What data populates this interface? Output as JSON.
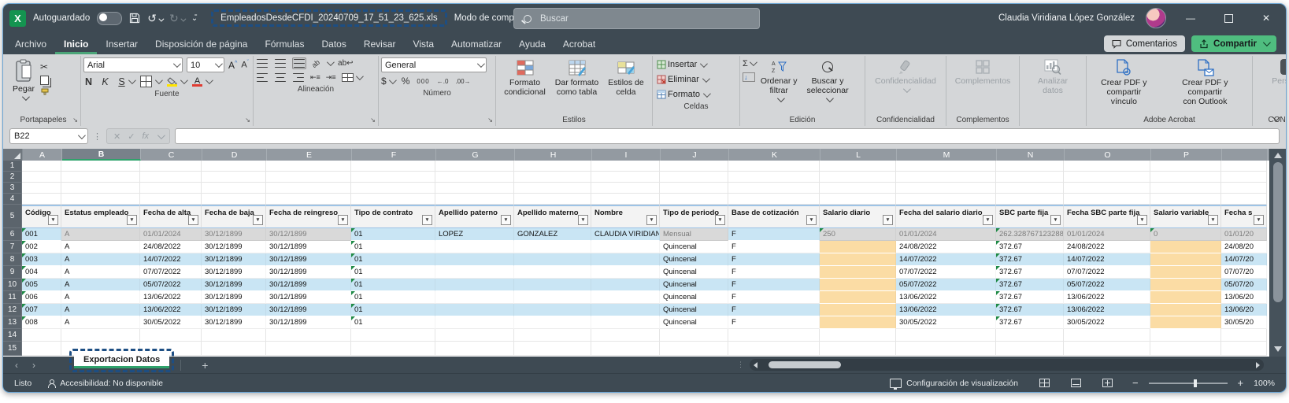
{
  "window": {
    "autosave_label": "Autoguardado",
    "filename": "EmpleadosDesdeCFDI_20240709_17_51_23_625.xls",
    "compatibility_mode": "Modo de compatibil...",
    "search_placeholder": "Buscar",
    "user_name": "Claudia Viridiana López González"
  },
  "ribbon": {
    "tabs": [
      {
        "label": "Archivo"
      },
      {
        "label": "Inicio"
      },
      {
        "label": "Insertar"
      },
      {
        "label": "Disposición de página"
      },
      {
        "label": "Fórmulas"
      },
      {
        "label": "Datos"
      },
      {
        "label": "Revisar"
      },
      {
        "label": "Vista"
      },
      {
        "label": "Automatizar"
      },
      {
        "label": "Ayuda"
      },
      {
        "label": "Acrobat"
      }
    ],
    "active_tab": "Inicio",
    "comments_label": "Comentarios",
    "share_label": "Compartir",
    "clipboard": {
      "paste": "Pegar",
      "group_label": "Portapapeles"
    },
    "font": {
      "name": "Arial",
      "size": "10",
      "bold": "N",
      "italic": "K",
      "underline": "S",
      "group_label": "Fuente"
    },
    "alignment": {
      "group_label": "Alineación"
    },
    "number": {
      "format": "General",
      "group_label": "Número"
    },
    "styles": {
      "conditional": "Formato\ncondicional",
      "format_table": "Dar formato\ncomo tabla",
      "cell_styles": "Estilos de\ncelda",
      "group_label": "Estilos"
    },
    "cells": {
      "insert": "Insertar",
      "delete": "Eliminar",
      "format": "Formato",
      "group_label": "Celdas"
    },
    "editing": {
      "sort_filter": "Ordenar y\nfiltrar",
      "find_select": "Buscar y\nseleccionar",
      "group_label": "Edición"
    },
    "sensitivity": {
      "button": "Confidencialidad",
      "group_label": "Confidencialidad"
    },
    "addins": {
      "button": "Complementos",
      "group_label": "Complementos"
    },
    "analyze": {
      "button": "Analizar\ndatos"
    },
    "acrobat": {
      "pdf_link": "Crear PDF y\ncompartir vínculo",
      "pdf_outlook": "Crear PDF y compartir\ncon Outlook",
      "group_label": "Adobe Acrobat"
    },
    "contpaqi": {
      "button": "Personia",
      "group_label": "CONTPAQi"
    }
  },
  "formula_bar": {
    "name_box": "B22",
    "fx_label": "fx"
  },
  "grid": {
    "column_letters": [
      "A",
      "B",
      "C",
      "D",
      "E",
      "F",
      "G",
      "H",
      "I",
      "J",
      "K",
      "L",
      "M",
      "N",
      "O",
      "P",
      ""
    ],
    "selected_column": "B",
    "leading_empty_rows": [
      1,
      2,
      3,
      4
    ],
    "header_row_number": 5,
    "headers": [
      "Código",
      "Estatus empleado",
      "Fecha de alta",
      "Fecha de baja",
      "Fecha de reingreso",
      "Tipo de contrato",
      "Apellido paterno",
      "Apellido materno",
      "Nombre",
      "Tipo de periodo",
      "Base de cotización",
      "Salario diario",
      "Fecha del salario diario",
      "SBC parte fija",
      "Fecha SBC parte fija",
      "Salario variable",
      "Fecha s"
    ],
    "rows": [
      {
        "n": 6,
        "cells": [
          "001",
          "A",
          "01/01/2024",
          "30/12/1899",
          "30/12/1899",
          "01",
          "LOPEZ",
          "GONZALEZ",
          "CLAUDIA VIRIDIANA",
          "Mensual",
          "F",
          "250",
          "01/01/2024",
          "262.328767123288",
          "01/01/2024",
          "0",
          "01/01/20"
        ]
      },
      {
        "n": 7,
        "cells": [
          "002",
          "A",
          "24/08/2022",
          "30/12/1899",
          "30/12/1899",
          "01",
          "",
          "",
          "",
          "Quincenal",
          "F",
          "",
          "24/08/2022",
          "372.67",
          "24/08/2022",
          "",
          "24/08/20"
        ]
      },
      {
        "n": 8,
        "cells": [
          "003",
          "A",
          "14/07/2022",
          "30/12/1899",
          "30/12/1899",
          "01",
          "",
          "",
          "",
          "Quincenal",
          "F",
          "",
          "14/07/2022",
          "372.67",
          "14/07/2022",
          "",
          "14/07/20"
        ]
      },
      {
        "n": 9,
        "cells": [
          "004",
          "A",
          "07/07/2022",
          "30/12/1899",
          "30/12/1899",
          "01",
          "",
          "",
          "",
          "Quincenal",
          "F",
          "",
          "07/07/2022",
          "372.67",
          "07/07/2022",
          "",
          "07/07/20"
        ]
      },
      {
        "n": 10,
        "cells": [
          "005",
          "A",
          "05/07/2022",
          "30/12/1899",
          "30/12/1899",
          "01",
          "",
          "",
          "",
          "Quincenal",
          "F",
          "",
          "05/07/2022",
          "372.67",
          "05/07/2022",
          "",
          "05/07/20"
        ]
      },
      {
        "n": 11,
        "cells": [
          "006",
          "A",
          "13/06/2022",
          "30/12/1899",
          "30/12/1899",
          "01",
          "",
          "",
          "",
          "Quincenal",
          "F",
          "",
          "13/06/2022",
          "372.67",
          "13/06/2022",
          "",
          "13/06/20"
        ]
      },
      {
        "n": 12,
        "cells": [
          "007",
          "A",
          "13/06/2022",
          "30/12/1899",
          "30/12/1899",
          "01",
          "",
          "",
          "",
          "Quincenal",
          "F",
          "",
          "13/06/2022",
          "372.67",
          "13/06/2022",
          "",
          "13/06/20"
        ]
      },
      {
        "n": 13,
        "cells": [
          "008",
          "A",
          "30/05/2022",
          "30/12/1899",
          "30/12/1899",
          "01",
          "",
          "",
          "",
          "Quincenal",
          "F",
          "",
          "30/05/2022",
          "372.67",
          "30/05/2022",
          "",
          "30/05/20"
        ]
      }
    ],
    "trailing_empty_rows": [
      14,
      15
    ]
  },
  "sheet_bar": {
    "tab_label": "Exportacion Datos"
  },
  "status_bar": {
    "ready": "Listo",
    "accessibility": "Accesibilidad: No disponible",
    "display_settings": "Configuración de visualización",
    "zoom_level": "100%"
  }
}
